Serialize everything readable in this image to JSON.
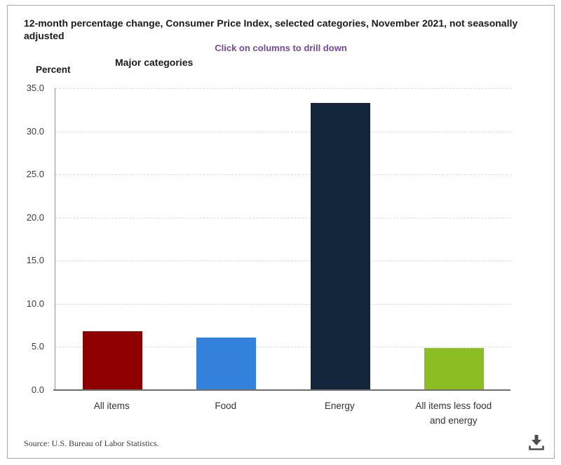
{
  "header": {
    "title": "12-month percentage change, Consumer Price Index, selected categories, November 2021, not seasonally adjusted",
    "drill_hint": "Click on columns to drill down",
    "level_label": "Major categories",
    "y_axis_title": "Percent"
  },
  "chart_data": {
    "type": "bar",
    "title": "12-month percentage change, Consumer Price Index, selected categories, November 2021, not seasonally adjusted",
    "categories": [
      "All items",
      "Food",
      "Energy",
      "All items less food and energy"
    ],
    "values": [
      6.8,
      6.1,
      33.3,
      4.9
    ],
    "bar_colors": [
      "#8e0000",
      "#3381db",
      "#12253a",
      "#8cbe23"
    ],
    "xlabel": "Major categories",
    "ylabel": "Percent",
    "ylim": [
      0,
      35
    ],
    "ytick_step": 5,
    "ytick_format_decimals": 1,
    "grid": true,
    "legend": "none",
    "interaction_hint": "Click on columns to drill down"
  },
  "footer": {
    "source": "Source: U.S. Bureau of Labor Statistics.",
    "download_icon": "download-icon"
  },
  "colors": {
    "title_text": "#1a1a1a",
    "hint_text": "#74489c",
    "axis_line": "#6e6e6e",
    "gridline": "#dcdcdc",
    "tick_text": "#3d3d3d",
    "frame_border": "#a9a9a9",
    "icon": "#4d4d4d"
  }
}
